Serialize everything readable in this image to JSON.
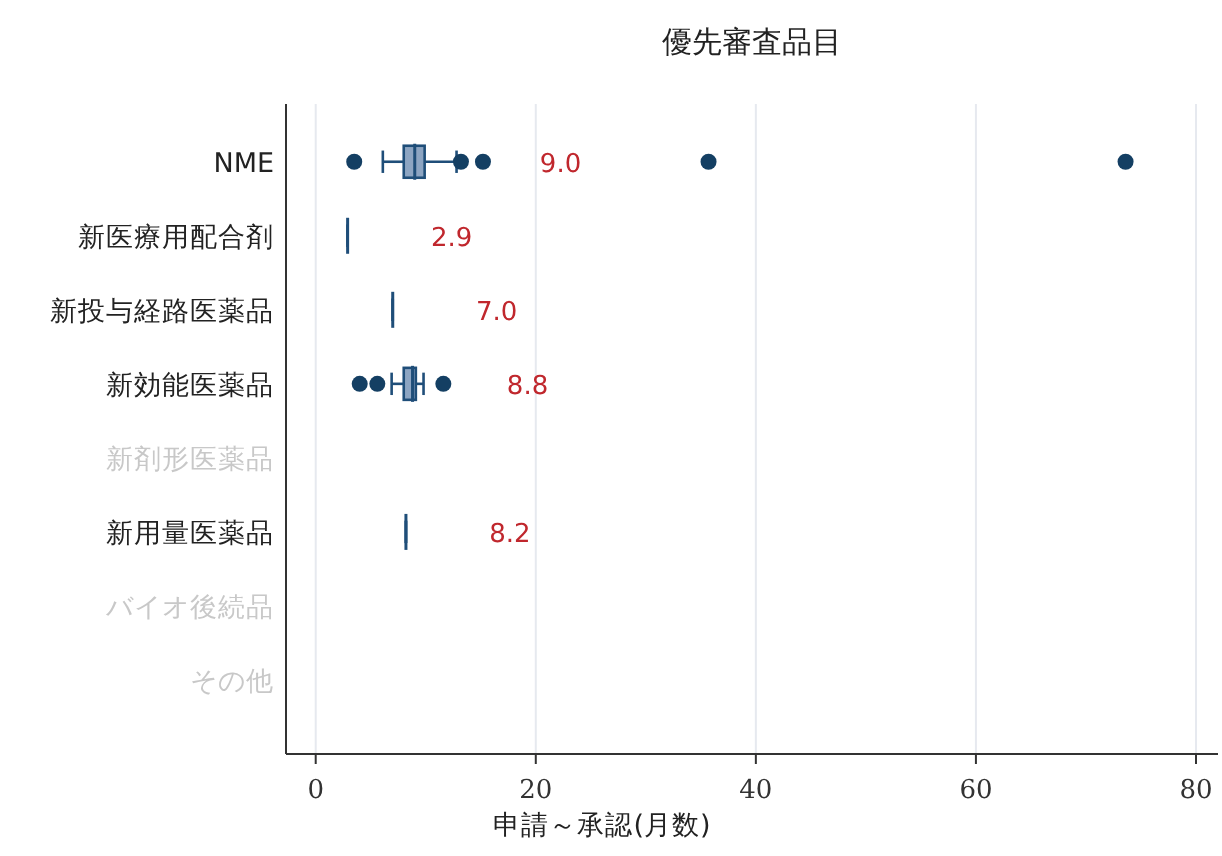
{
  "chart_data": {
    "type": "box",
    "orientation": "horizontal",
    "title": "優先審査品目",
    "xlabel": "申請～承認(月数)",
    "categories": [
      "NME",
      "新医療用配合剤",
      "新投与経路医薬品",
      "新効能医薬品",
      "新剤形医薬品",
      "新用量医薬品",
      "バイオ後続品",
      "その他"
    ],
    "color": "#1f4e79",
    "boxes": [
      {
        "low": 6.1,
        "q1": 8.0,
        "median": 9.0,
        "q3": 9.9,
        "high": 12.8,
        "outliers": [
          3.5,
          13.2,
          15.2,
          35.7,
          73.6
        ]
      },
      {
        "low": 2.9,
        "q1": 2.9,
        "median": 2.9,
        "q3": 2.9,
        "high": 2.9
      },
      {
        "low": 7.0,
        "q1": 7.0,
        "median": 7.0,
        "q3": 7.0,
        "high": 7.0
      },
      {
        "low": 6.9,
        "q1": 8.0,
        "median": 8.8,
        "q3": 9.1,
        "high": 9.8,
        "outliers": [
          4.0,
          5.6,
          11.6
        ]
      },
      null,
      {
        "low": 8.2,
        "q1": 8.2,
        "median": 8.2,
        "q3": 8.2,
        "high": 8.2
      },
      null,
      null
    ],
    "annotations": [
      "9.0",
      "2.9",
      "7.0",
      "8.8",
      "8.2"
    ],
    "xlim": [
      -2.7,
      82
    ],
    "xticks": [
      0,
      20,
      40,
      60,
      80
    ],
    "grid": "x"
  }
}
